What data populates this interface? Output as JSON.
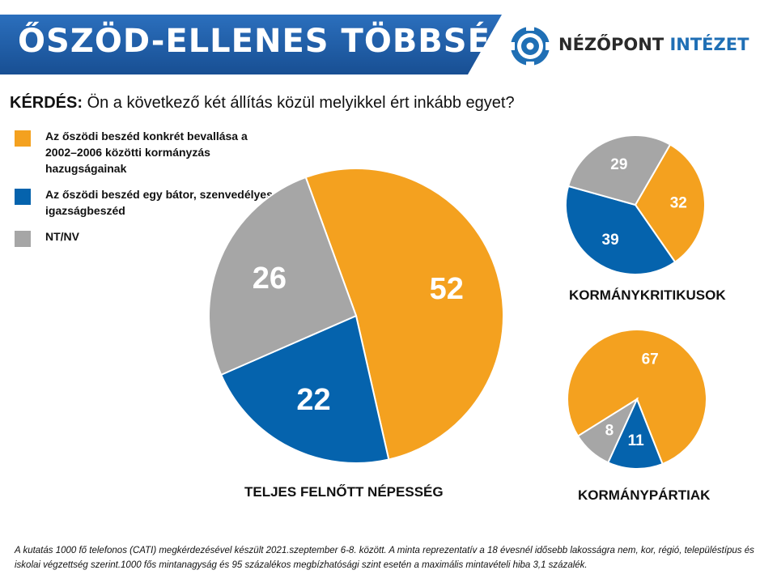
{
  "header": {
    "title": "ŐSZÖD-ELLENES TÖBBSÉG",
    "banner_color": "#1f5fa6",
    "logo": {
      "brand": "NÉZŐPONT",
      "suffix": "INTÉZET",
      "brand_color": "#2a2a2a",
      "suffix_color": "#1f6fb5",
      "icon": "target-icon"
    }
  },
  "question": {
    "label": "KÉRDÉS:",
    "text": " Ön a következő két állítás közül melyikkel ért inkább egyet?"
  },
  "legend": [
    {
      "label": "Az őszödi beszéd konkrét bevallása a 2002–2006 közötti kormányzás hazugságainak",
      "color": "#f4a11f"
    },
    {
      "label": "Az őszödi beszéd egy bátor, szenvedélyes igazságbeszéd",
      "color": "#0563ad"
    },
    {
      "label": "NT/NV",
      "color": "#a6a6a6"
    }
  ],
  "chart_data": [
    {
      "type": "pie",
      "title": "TELJES FELNŐTT NÉPESSÉG",
      "categories": [
        "Az őszödi beszéd konkrét bevallása a 2002–2006 közötti kormányzás hazugságainak",
        "Az őszödi beszéd egy bátor, szenvedélyes igazságbeszéd",
        "NT/NV"
      ],
      "values": [
        52,
        22,
        26
      ],
      "colors": [
        "#f4a11f",
        "#0563ad",
        "#a6a6a6"
      ]
    },
    {
      "type": "pie",
      "title": "KORMÁNYKRITIKUSOK",
      "categories": [
        "Az őszödi beszéd konkrét bevallása a 2002–2006 közötti kormányzás hazugságainak",
        "Az őszödi beszéd egy bátor, szenvedélyes igazságbeszéd",
        "NT/NV"
      ],
      "values": [
        32,
        39,
        29
      ],
      "colors": [
        "#f4a11f",
        "#0563ad",
        "#a6a6a6"
      ]
    },
    {
      "type": "pie",
      "title": "KORMÁNYPÁRTIAK",
      "categories": [
        "Az őszödi beszéd konkrét bevallása a 2002–2006 közötti kormányzás hazugságainak",
        "Az őszödi beszéd egy bátor, szenvedélyes igazságbeszéd",
        "NT/NV"
      ],
      "values": [
        67,
        11,
        8
      ],
      "colors": [
        "#f4a11f",
        "#0563ad",
        "#a6a6a6"
      ]
    }
  ],
  "footnote": "A kutatás 1000 fő telefonos (CATI) megkérdezésével készült 2021.szeptember 6-8. között. A minta reprezentatív a 18 évesnél idősebb lakosságra nem, kor, régió, településtípus és iskolai végzettség szerint.1000 fős mintanagyság és 95 százalékos megbízhatósági szint esetén a maximális mintavételi hiba 3,1 százalék."
}
